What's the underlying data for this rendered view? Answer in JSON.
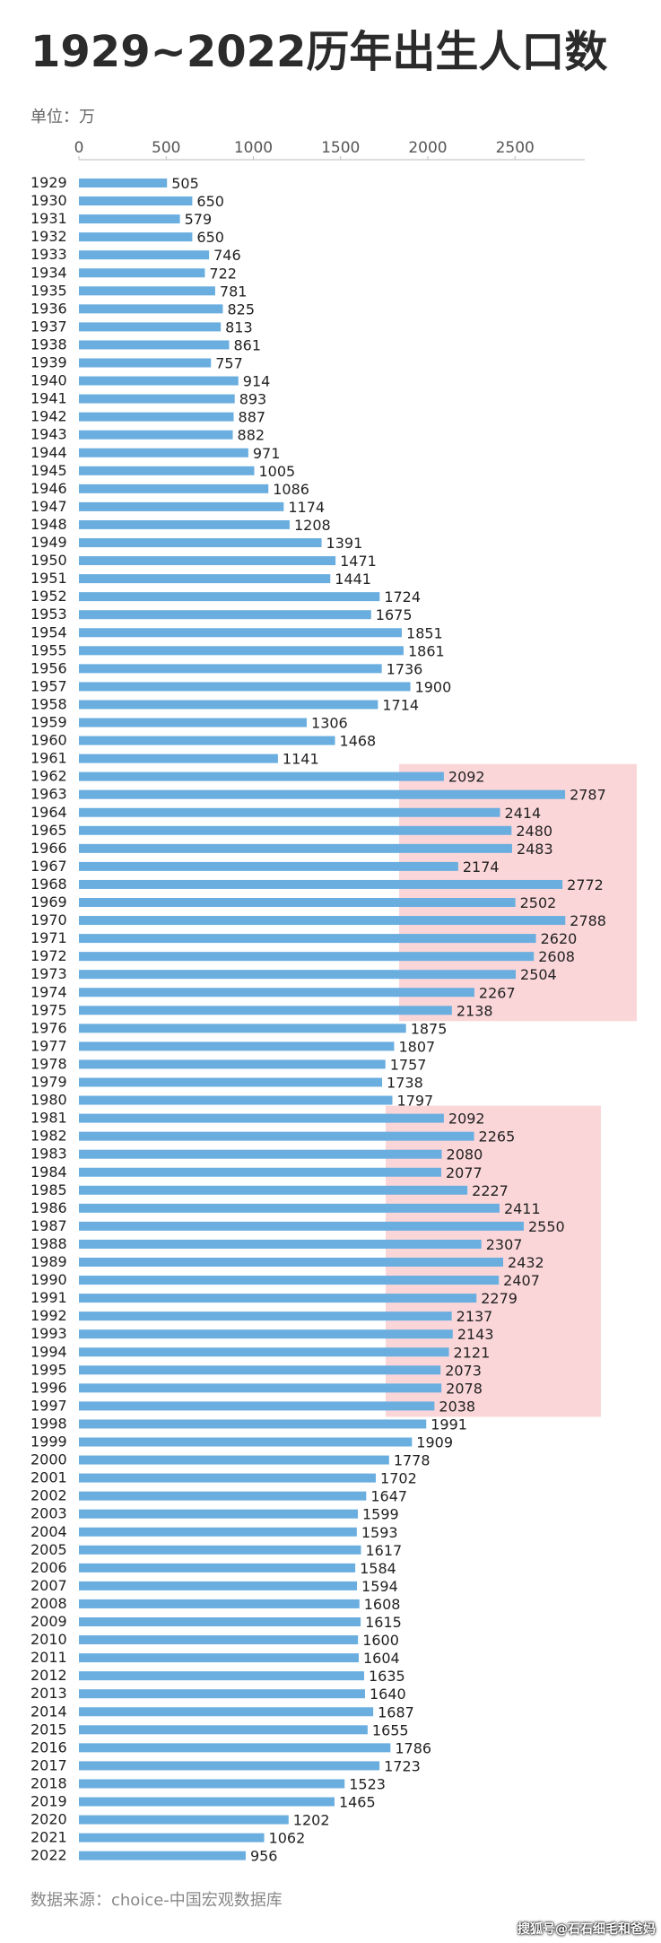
{
  "title": "1929~2022历年出生人口数",
  "unit_label": "单位：万",
  "source_label": "数据来源：choice-中国宏观数据库",
  "watermark": "搜狐号@石石细毛和爸妈",
  "colors": {
    "bar": "#6aaee0",
    "highlight": "#f9c8cc",
    "axis": "#bbbbbb"
  },
  "chart_data": {
    "type": "bar",
    "orientation": "horizontal",
    "xlim": [
      0,
      2900
    ],
    "xticks": [
      0,
      500,
      1000,
      1500,
      2000,
      2500
    ],
    "show_data_labels": true,
    "highlighted_ranges": [
      {
        "from": "1962",
        "to": "1975"
      },
      {
        "from": "1981",
        "to": "1997"
      }
    ],
    "categories": [
      "1929",
      "1930",
      "1931",
      "1932",
      "1933",
      "1934",
      "1935",
      "1936",
      "1937",
      "1938",
      "1939",
      "1940",
      "1941",
      "1942",
      "1943",
      "1944",
      "1945",
      "1946",
      "1947",
      "1948",
      "1949",
      "1950",
      "1951",
      "1952",
      "1953",
      "1954",
      "1955",
      "1956",
      "1957",
      "1958",
      "1959",
      "1960",
      "1961",
      "1962",
      "1963",
      "1964",
      "1965",
      "1966",
      "1967",
      "1968",
      "1969",
      "1970",
      "1971",
      "1972",
      "1973",
      "1974",
      "1975",
      "1976",
      "1977",
      "1978",
      "1979",
      "1980",
      "1981",
      "1982",
      "1983",
      "1984",
      "1985",
      "1986",
      "1987",
      "1988",
      "1989",
      "1990",
      "1991",
      "1992",
      "1993",
      "1994",
      "1995",
      "1996",
      "1997",
      "1998",
      "1999",
      "2000",
      "2001",
      "2002",
      "2003",
      "2004",
      "2005",
      "2006",
      "2007",
      "2008",
      "2009",
      "2010",
      "2011",
      "2012",
      "2013",
      "2014",
      "2015",
      "2016",
      "2017",
      "2018",
      "2019",
      "2020",
      "2021",
      "2022"
    ],
    "values": [
      505,
      650,
      579,
      650,
      746,
      722,
      781,
      825,
      813,
      861,
      757,
      914,
      893,
      887,
      882,
      971,
      1005,
      1086,
      1174,
      1208,
      1391,
      1471,
      1441,
      1724,
      1675,
      1851,
      1861,
      1736,
      1900,
      1714,
      1306,
      1468,
      1141,
      2092,
      2787,
      2414,
      2480,
      2483,
      2174,
      2772,
      2502,
      2788,
      2620,
      2608,
      2504,
      2267,
      2138,
      1875,
      1807,
      1757,
      1738,
      1797,
      2092,
      2265,
      2080,
      2077,
      2227,
      2411,
      2550,
      2307,
      2432,
      2407,
      2279,
      2137,
      2143,
      2121,
      2073,
      2078,
      2038,
      1991,
      1909,
      1778,
      1702,
      1647,
      1599,
      1593,
      1617,
      1584,
      1594,
      1608,
      1615,
      1600,
      1604,
      1635,
      1640,
      1687,
      1655,
      1786,
      1723,
      1523,
      1465,
      1202,
      1062,
      956
    ]
  }
}
